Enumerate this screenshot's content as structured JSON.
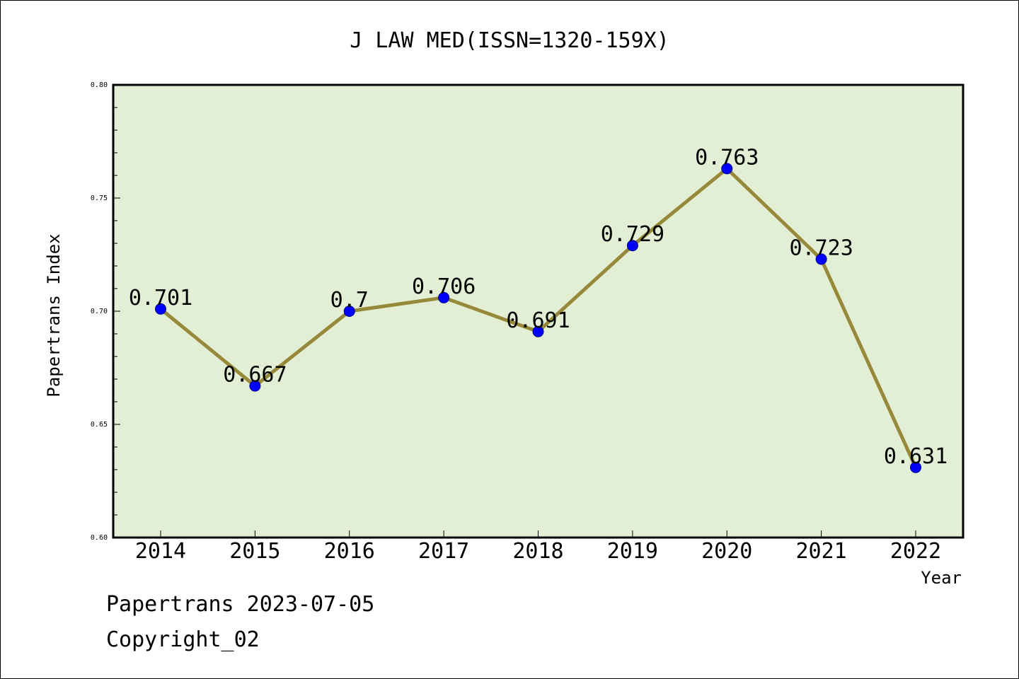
{
  "footer": {
    "line1": "Papertrans 2023-07-05",
    "line2": "Copyright_02"
  },
  "chart_data": {
    "type": "line",
    "title": "J LAW MED(ISSN=1320-159X)",
    "xlabel": "Year",
    "ylabel": "Papertrans Index",
    "categories": [
      "2014",
      "2015",
      "2016",
      "2017",
      "2018",
      "2019",
      "2020",
      "2021",
      "2022"
    ],
    "values": [
      0.701,
      0.667,
      0.7,
      0.706,
      0.691,
      0.729,
      0.763,
      0.723,
      0.631
    ],
    "data_labels": [
      "0.701",
      "0.667",
      "0.7",
      "0.706",
      "0.691",
      "0.729",
      "0.763",
      "0.723",
      "0.631"
    ],
    "ylim": [
      0.6,
      0.8
    ],
    "yticks": [
      "0.60",
      "0.65",
      "0.70",
      "0.75",
      "0.80"
    ],
    "grid": false,
    "legend": "none",
    "colors": {
      "plot_background": "#e2efd4",
      "line": "#968a3a",
      "marker": "#0000ff"
    }
  }
}
